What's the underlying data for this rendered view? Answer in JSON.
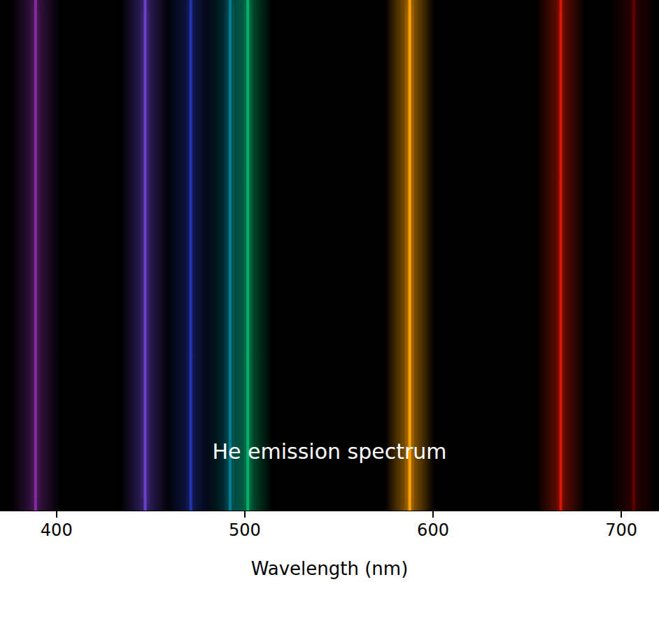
{
  "chart_data": {
    "type": "spectrum",
    "title": "He emission spectrum",
    "xlabel": "Wavelength (nm)",
    "x": [
      388.9,
      447.1,
      471.3,
      492.2,
      501.6,
      587.6,
      667.8,
      706.5
    ],
    "values": [
      0.55,
      0.65,
      0.5,
      0.55,
      0.75,
      1.0,
      0.7,
      0.38
    ],
    "colors": [
      "#b43cdc",
      "#8250ff",
      "#3250ff",
      "#00a0c8",
      "#00c878",
      "#ffa000",
      "#ff1e00",
      "#b40000"
    ],
    "xlim": [
      370,
      720
    ],
    "xticks": [
      400,
      500,
      600,
      700
    ],
    "grid": false,
    "tick_labels": "x"
  }
}
